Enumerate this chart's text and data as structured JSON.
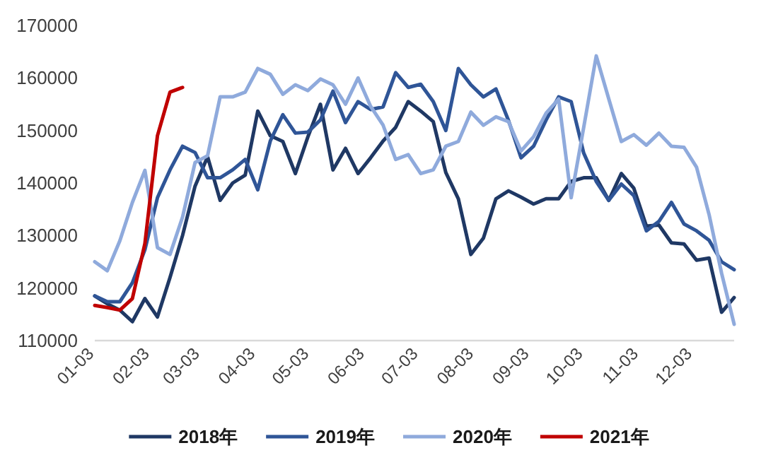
{
  "chart_data": {
    "type": "line",
    "x": [
      "--01-03",
      "--01-10",
      "--01-17",
      "--01-24",
      "--01-31",
      "--02-07",
      "--02-14",
      "--02-21",
      "--02-28",
      "--03-07",
      "--03-14",
      "--03-21",
      "--03-28",
      "--04-04",
      "--04-11",
      "--04-18",
      "--04-25",
      "--05-02",
      "--05-09",
      "--05-16",
      "--05-23",
      "--05-30",
      "--06-06",
      "--06-13",
      "--06-20",
      "--06-27",
      "--07-04",
      "--07-11",
      "--07-18",
      "--07-25",
      "--08-01",
      "--08-08",
      "--08-15",
      "--08-22",
      "--08-29",
      "--09-05",
      "--09-12",
      "--09-19",
      "--09-26",
      "--10-03",
      "--10-10",
      "--10-17",
      "--10-24",
      "--10-31",
      "--11-07",
      "--11-14",
      "--11-21",
      "--11-28",
      "--12-05",
      "--12-12",
      "--12-19",
      "--12-26"
    ],
    "xlim": [
      "--01-03",
      "--12-26"
    ],
    "xticks": [
      {
        "value": "--01-03",
        "label": "01-03"
      },
      {
        "value": "--02-03",
        "label": "02-03"
      },
      {
        "value": "--03-03",
        "label": "03-03"
      },
      {
        "value": "--04-03",
        "label": "04-03"
      },
      {
        "value": "--05-03",
        "label": "05-03"
      },
      {
        "value": "--06-03",
        "label": "06-03"
      },
      {
        "value": "--07-03",
        "label": "07-03"
      },
      {
        "value": "--08-03",
        "label": "08-03"
      },
      {
        "value": "--09-03",
        "label": "09-03"
      },
      {
        "value": "--10-03",
        "label": "10-03"
      },
      {
        "value": "--11-03",
        "label": "11-03"
      },
      {
        "value": "--12-03",
        "label": "12-03"
      }
    ],
    "ylim": [
      110000,
      170000
    ],
    "yticks": [
      110000,
      120000,
      130000,
      140000,
      150000,
      160000,
      170000
    ],
    "legend": "bottom",
    "series": [
      {
        "name": "2018年",
        "color": "#1f3864",
        "values": [
          118500,
          117000,
          115800,
          113600,
          118000,
          114500,
          122000,
          130000,
          139400,
          145000,
          136700,
          140000,
          141500,
          153700,
          149000,
          147900,
          141800,
          148800,
          155000,
          142500,
          146600,
          141800,
          144800,
          148000,
          150600,
          155500,
          153700,
          151700,
          142000,
          137000,
          126400,
          129500,
          137000,
          138500,
          137300,
          136000,
          137000,
          137000,
          140300,
          141000,
          141000,
          136700,
          141800,
          139000,
          131800,
          132000,
          128600,
          128400,
          125300,
          125700,
          115400,
          118200
        ]
      },
      {
        "name": "2019年",
        "color": "#2f5597",
        "values": [
          118500,
          117400,
          117400,
          121000,
          127300,
          137200,
          142500,
          147000,
          145800,
          141000,
          141000,
          142500,
          144500,
          138700,
          148000,
          153000,
          149500,
          149700,
          152000,
          157500,
          151500,
          155500,
          154000,
          154500,
          161000,
          158200,
          158800,
          155500,
          150000,
          161800,
          158700,
          156400,
          157900,
          151900,
          144800,
          147000,
          152000,
          156400,
          155500,
          145700,
          140300,
          136700,
          139800,
          137600,
          130900,
          132700,
          136300,
          132200,
          130900,
          129100,
          125000,
          123500
        ]
      },
      {
        "name": "2020年",
        "color": "#8faadc",
        "values": [
          125000,
          123300,
          129000,
          136300,
          142400,
          127700,
          126400,
          133500,
          143900,
          145200,
          156400,
          156400,
          157300,
          161800,
          160700,
          156900,
          158700,
          157600,
          159800,
          158700,
          155000,
          160000,
          154600,
          151000,
          144500,
          145400,
          141800,
          142500,
          147000,
          147900,
          153500,
          151000,
          152600,
          151700,
          146100,
          148800,
          153300,
          156000,
          137200,
          150600,
          164200,
          156000,
          147900,
          149200,
          147200,
          149500,
          147000,
          146800,
          143000,
          134000,
          122800,
          113100
        ]
      },
      {
        "name": "2021年",
        "color": "#c00000",
        "x": [
          "--01-03",
          "--01-10",
          "--01-17",
          "--01-24",
          "--01-31",
          "--02-07",
          "--02-14",
          "--02-21"
        ],
        "values": [
          116700,
          116300,
          115800,
          118000,
          128500,
          149000,
          157300,
          158200
        ]
      }
    ]
  }
}
